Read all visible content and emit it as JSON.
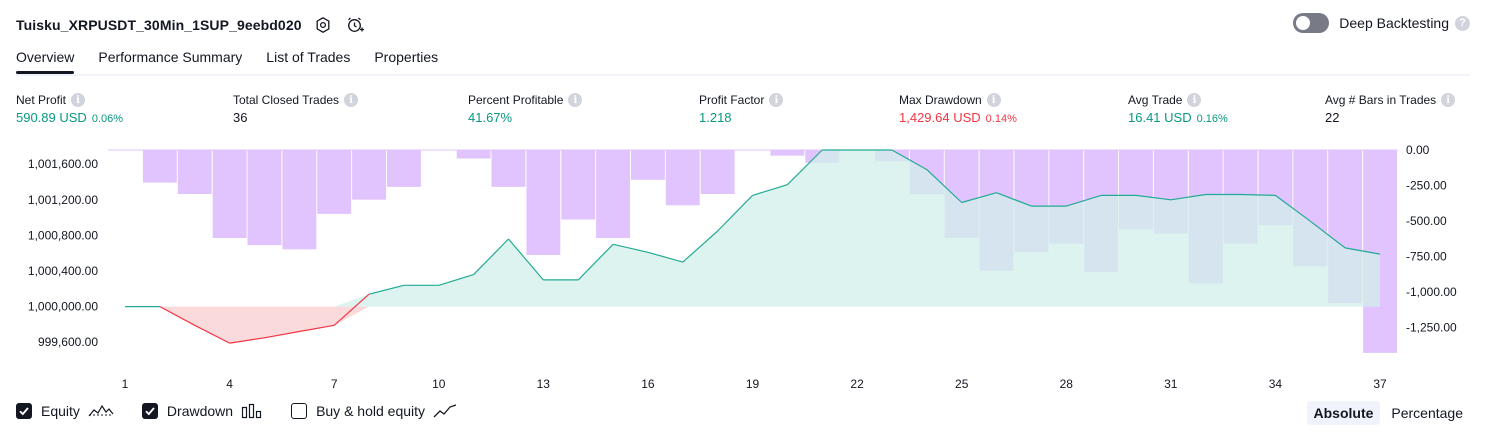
{
  "header": {
    "title": "Tuisku_XRPUSDT_30Min_1SUP_9eebd020",
    "icons": [
      "settings-icon",
      "add-alert-icon"
    ]
  },
  "deep_backtesting": {
    "label": "Deep Backtesting",
    "enabled": false,
    "help": "?"
  },
  "tabs": [
    {
      "label": "Overview",
      "active": true
    },
    {
      "label": "Performance Summary",
      "active": false
    },
    {
      "label": "List of Trades",
      "active": false
    },
    {
      "label": "Properties",
      "active": false
    }
  ],
  "info_glyph": "i",
  "metrics": {
    "net_profit": {
      "label": "Net Profit",
      "value": "590.89 USD",
      "pct": "0.06%"
    },
    "total_closed_trades": {
      "label": "Total Closed Trades",
      "value": "36"
    },
    "percent_profitable": {
      "label": "Percent Profitable",
      "value": "41.67%"
    },
    "profit_factor": {
      "label": "Profit Factor",
      "value": "1.218"
    },
    "max_drawdown": {
      "label": "Max Drawdown",
      "value": "1,429.64 USD",
      "pct": "0.14%"
    },
    "avg_trade": {
      "label": "Avg Trade",
      "value": "16.41 USD",
      "pct": "0.16%"
    },
    "avg_bars": {
      "label": "Avg # Bars in Trades",
      "value": "22"
    }
  },
  "chart_data": {
    "type": "line",
    "x": [
      1,
      2,
      3,
      4,
      5,
      6,
      7,
      8,
      9,
      10,
      11,
      12,
      13,
      14,
      15,
      16,
      17,
      18,
      19,
      20,
      21,
      22,
      23,
      24,
      25,
      26,
      27,
      28,
      29,
      30,
      31,
      32,
      33,
      34,
      35,
      36,
      37
    ],
    "x_ticks": [
      "1",
      "4",
      "7",
      "10",
      "13",
      "16",
      "19",
      "22",
      "25",
      "28",
      "31",
      "34",
      "37"
    ],
    "left_axis": {
      "ticks": [
        "1,001,600.00",
        "1,001,200.00",
        "1,000,800.00",
        "1,000,400.00",
        "1,000,000.00",
        "999,600.00"
      ],
      "range": [
        999400,
        1001760
      ]
    },
    "right_axis": {
      "ticks": [
        "0.00",
        "-250.00",
        "-500.00",
        "-750.00",
        "-1,000.00",
        "-1,250.00"
      ],
      "range": [
        -1480,
        0
      ]
    },
    "baseline": 1000000,
    "series": [
      {
        "name": "Equity",
        "values": [
          1000000,
          1000000,
          999790,
          999590,
          999650,
          999720,
          999790,
          1000140,
          1000240,
          1000240,
          1000360,
          1000760,
          1000300,
          1000300,
          1000700,
          1000610,
          1000500,
          1000850,
          1001250,
          1001370,
          1001760,
          1001760,
          1001760,
          1001540,
          1001170,
          1001280,
          1001130,
          1001130,
          1001250,
          1001250,
          1001200,
          1001260,
          1001260,
          1001250,
          1000960,
          1000660,
          1000590
        ]
      },
      {
        "name": "Drawdown",
        "values": [
          0,
          -230,
          -310,
          -620,
          -670,
          -700,
          -450,
          -350,
          -260,
          0,
          -60,
          -260,
          -740,
          -490,
          -620,
          -210,
          -390,
          -310,
          0,
          -40,
          -90,
          0,
          -80,
          -310,
          -620,
          -850,
          -720,
          -660,
          -860,
          -560,
          -590,
          -940,
          -660,
          -530,
          -820,
          -1080,
          -1430
        ]
      }
    ],
    "colors": {
      "equity_line": "#22ab94",
      "equity_fill": "#d2efe9",
      "equity_loss_line": "#f23645",
      "equity_loss_fill": "#fbd6d8",
      "drawdown_bar": "#e1c4fd",
      "drawdown_overlap": "#c1bbf3",
      "grid": "#f0f3fa"
    }
  },
  "legend": [
    {
      "label": "Equity",
      "checked": true,
      "icon": "equity-line-icon"
    },
    {
      "label": "Drawdown",
      "checked": true,
      "icon": "drawdown-bars-icon"
    },
    {
      "label": "Buy & hold equity",
      "checked": false,
      "icon": "buy-hold-line-icon"
    }
  ],
  "mode": {
    "absolute": "Absolute",
    "percentage": "Percentage",
    "active": "Absolute"
  }
}
